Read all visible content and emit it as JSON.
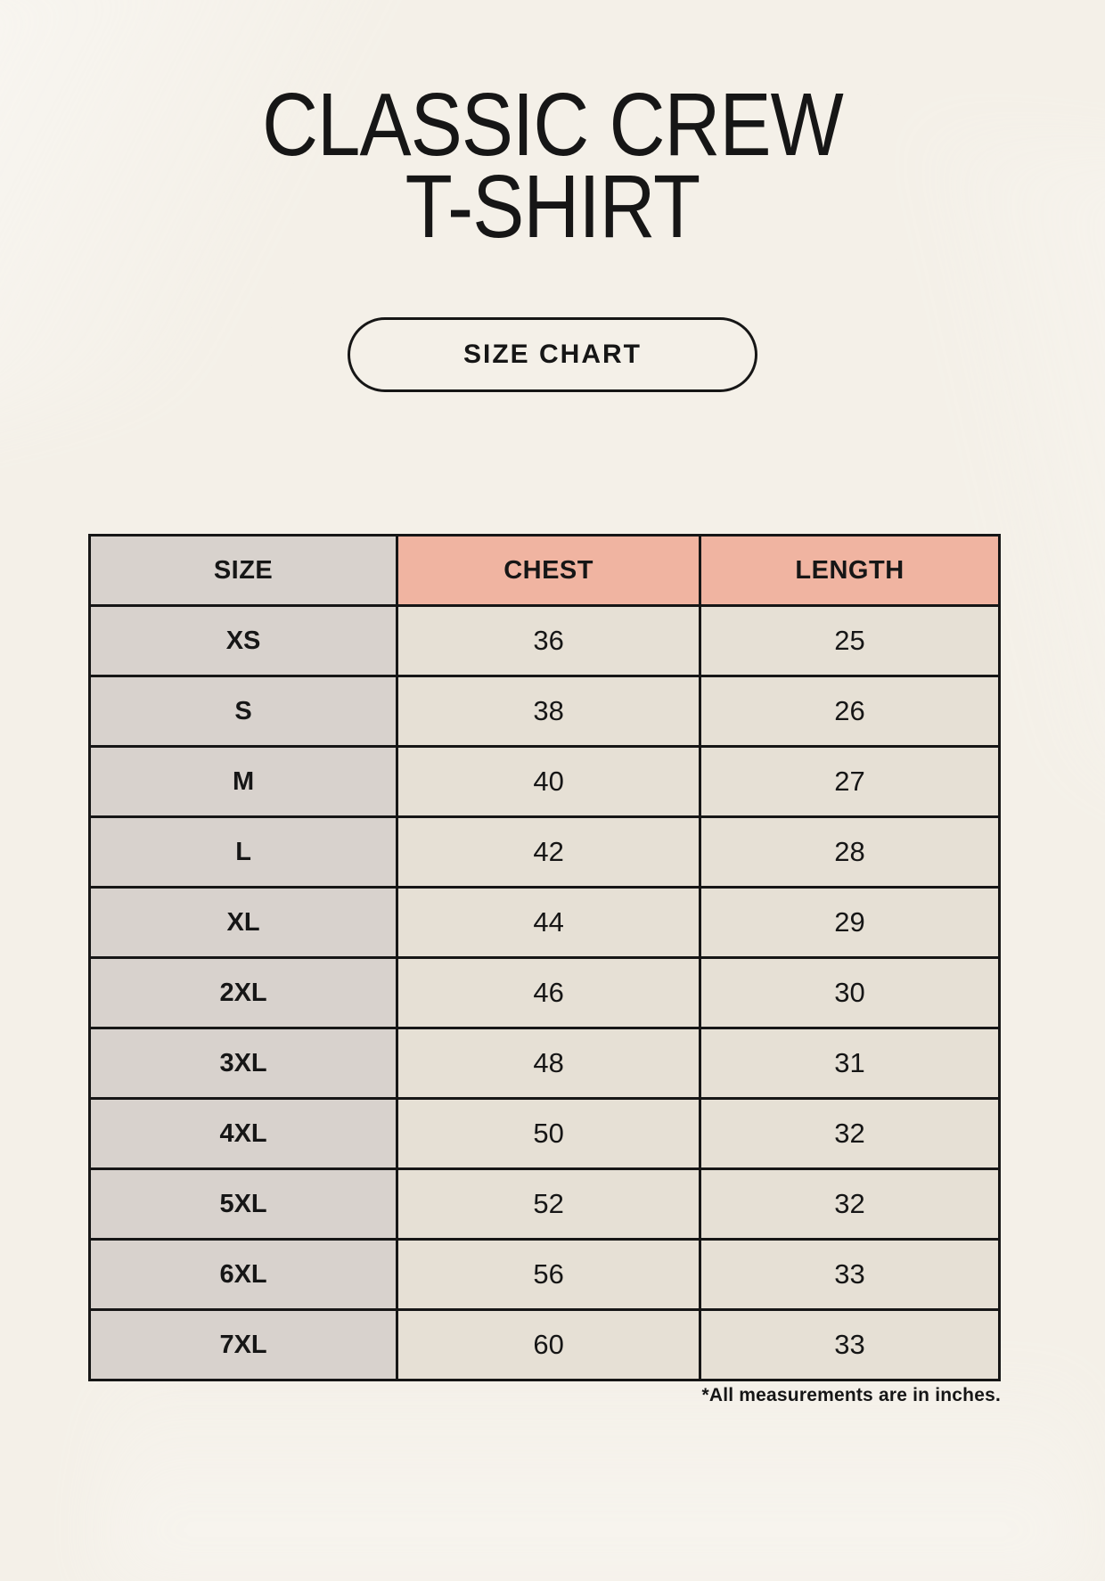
{
  "page": {
    "title_line1": "CLASSIC CREW",
    "title_line2": "T-SHIRT",
    "size_chart_button_label": "SIZE CHART",
    "footnote": "*All measurements are in inches."
  },
  "colors": {
    "background": "#f4f0e8",
    "header_size_bg": "#d8d2cd",
    "header_measure_bg": "#f0b4a1",
    "row_label_bg": "#d8d2cd",
    "row_value_bg": "#e6e0d5",
    "border": "#161616",
    "text": "#161616"
  },
  "chart_data": {
    "type": "table",
    "title": "CLASSIC CREW T-SHIRT",
    "columns": [
      "SIZE",
      "CHEST",
      "LENGTH"
    ],
    "units": "inches",
    "rows": [
      [
        "XS",
        "36",
        "25"
      ],
      [
        "S",
        "38",
        "26"
      ],
      [
        "M",
        "40",
        "27"
      ],
      [
        "L",
        "42",
        "28"
      ],
      [
        "XL",
        "44",
        "29"
      ],
      [
        "2XL",
        "46",
        "30"
      ],
      [
        "3XL",
        "48",
        "31"
      ],
      [
        "4XL",
        "50",
        "32"
      ],
      [
        "5XL",
        "52",
        "32"
      ],
      [
        "6XL",
        "56",
        "33"
      ],
      [
        "7XL",
        "60",
        "33"
      ]
    ]
  }
}
